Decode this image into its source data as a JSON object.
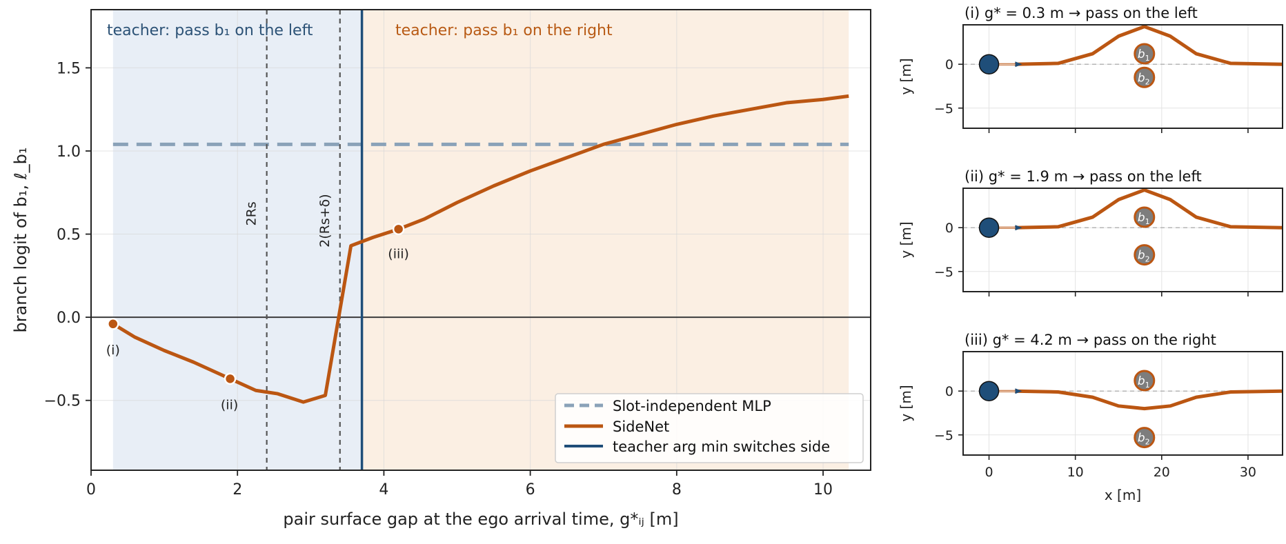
{
  "colors": {
    "sidenet": "#bb5612",
    "teacher": "#1f4e79",
    "mlp": "#8aa2b8",
    "left_region": "#e8eef6",
    "right_region": "#fbefe3",
    "guide": "#555555",
    "obstacle_fill": "#7d7d7d",
    "ego_fill": "#1f4e79"
  },
  "main": {
    "region_left_label": "teacher: pass b₁ on the left",
    "region_right_label": "teacher: pass b₁ on the right",
    "xlabel": "pair surface gap at the ego arrival time,  g*ᵢⱼ [m]",
    "ylabel": "branch logit of b₁,   ℓ_b₁",
    "guide_2Rs_label": "2Rs",
    "guide_2Rsd_label": "2(Rs+δ)",
    "markers": [
      {
        "label": "(i)"
      },
      {
        "label": "(ii)"
      },
      {
        "label": "(iii)"
      }
    ],
    "legend": [
      {
        "label": "Slot-independent MLP",
        "icon": "dashed-line-icon"
      },
      {
        "label": "SideNet",
        "icon": "solid-line-icon"
      },
      {
        "label": "teacher arg min  switches side",
        "icon": "solid-line-icon"
      }
    ]
  },
  "panels": [
    {
      "title": "(i)  g* = 0.3 m   →  pass on the left",
      "side": "left",
      "b1_y": 1.2,
      "b2_y": -1.5
    },
    {
      "title": "(ii)  g* = 1.9 m   →  pass on the left",
      "side": "left",
      "b1_y": 1.2,
      "b2_y": -3.1
    },
    {
      "title": "(iii)  g* = 4.2 m   →  pass on the right",
      "side": "right",
      "b1_y": 1.2,
      "b2_y": -5.3
    }
  ],
  "panel_axes": {
    "ylabel": "y [m]",
    "xlabel": "x [m]",
    "xticks": [
      0,
      10,
      20,
      30
    ],
    "yticks": [
      0,
      -5
    ],
    "xlim": [
      -3,
      34
    ],
    "ylim": [
      -7.3,
      4.5
    ]
  },
  "chart_data": [
    {
      "type": "line",
      "xlabel": "pair surface gap at the ego arrival time,  g*ᵢⱼ [m]",
      "ylabel": "branch logit of b₁,   ℓ_b₁",
      "xlim": [
        0,
        10.65
      ],
      "ylim": [
        -0.92,
        1.85
      ],
      "xticks": [
        0,
        2,
        4,
        6,
        8,
        10
      ],
      "yticks": [
        -0.5,
        0.0,
        0.5,
        1.0,
        1.5
      ],
      "grid": true,
      "legend_position": "bottom-right",
      "series": [
        {
          "name": "SideNet",
          "x": [
            0.3,
            0.6,
            1.0,
            1.4,
            1.9,
            2.25,
            2.55,
            2.9,
            3.2,
            3.55,
            3.85,
            4.2,
            4.55,
            5.0,
            5.5,
            6.0,
            6.5,
            7.0,
            7.5,
            8.0,
            8.5,
            9.0,
            9.5,
            10.0,
            10.35
          ],
          "y": [
            -0.04,
            -0.12,
            -0.2,
            -0.27,
            -0.37,
            -0.44,
            -0.46,
            -0.51,
            -0.47,
            0.43,
            0.48,
            0.53,
            0.59,
            0.69,
            0.79,
            0.88,
            0.96,
            1.04,
            1.1,
            1.16,
            1.21,
            1.25,
            1.29,
            1.31,
            1.33
          ]
        },
        {
          "name": "Slot-independent MLP",
          "x": [
            0.3,
            10.35
          ],
          "y": [
            1.04,
            1.04
          ]
        }
      ],
      "vertical_lines": [
        {
          "name": "teacher arg min  switches side",
          "x": 3.7
        },
        {
          "label": "2Rs",
          "x": 2.4
        },
        {
          "label": "2(Rs+δ)",
          "x": 3.4
        }
      ],
      "shaded_regions": [
        {
          "label": "teacher: pass b₁ on the left",
          "x": [
            0.3,
            3.7
          ]
        },
        {
          "label": "teacher: pass b₁ on the right",
          "x": [
            3.7,
            10.35
          ]
        }
      ],
      "marked_points": [
        {
          "label": "(i)",
          "x": 0.3,
          "y": -0.04
        },
        {
          "label": "(ii)",
          "x": 1.9,
          "y": -0.37
        },
        {
          "label": "(iii)",
          "x": 4.2,
          "y": 0.53
        }
      ]
    },
    {
      "type": "line",
      "title": "(i)  g* = 0.3 m   →  pass on the left",
      "xlabel": "",
      "ylabel": "y [m]",
      "xlim": [
        -3,
        34
      ],
      "ylim": [
        -7.3,
        4.5
      ],
      "series": [
        {
          "name": "",
          "x": [
            3,
            8,
            12,
            15,
            18,
            21,
            24,
            28,
            34
          ],
          "y": [
            0,
            0.1,
            1.2,
            3.2,
            4.3,
            3.2,
            1.2,
            0.1,
            0
          ]
        }
      ]
    },
    {
      "type": "line",
      "title": "(ii)  g* = 1.9 m   →  pass on the left",
      "xlabel": "",
      "ylabel": "y [m]",
      "xlim": [
        -3,
        34
      ],
      "ylim": [
        -7.3,
        4.5
      ],
      "series": [
        {
          "name": "",
          "x": [
            3,
            8,
            12,
            15,
            18,
            21,
            24,
            28,
            34
          ],
          "y": [
            0,
            0.1,
            1.2,
            3.2,
            4.3,
            3.2,
            1.2,
            0.1,
            0
          ]
        }
      ]
    },
    {
      "type": "line",
      "title": "(iii)  g* = 4.2 m   →  pass on the right",
      "xlabel": "x [m]",
      "ylabel": "y [m]",
      "xlim": [
        -3,
        34
      ],
      "ylim": [
        -7.3,
        4.5
      ],
      "series": [
        {
          "name": "",
          "x": [
            3,
            8,
            12,
            15,
            18,
            21,
            24,
            28,
            34
          ],
          "y": [
            0,
            -0.1,
            -0.7,
            -1.7,
            -2.0,
            -1.7,
            -0.7,
            -0.1,
            0
          ]
        }
      ]
    }
  ]
}
